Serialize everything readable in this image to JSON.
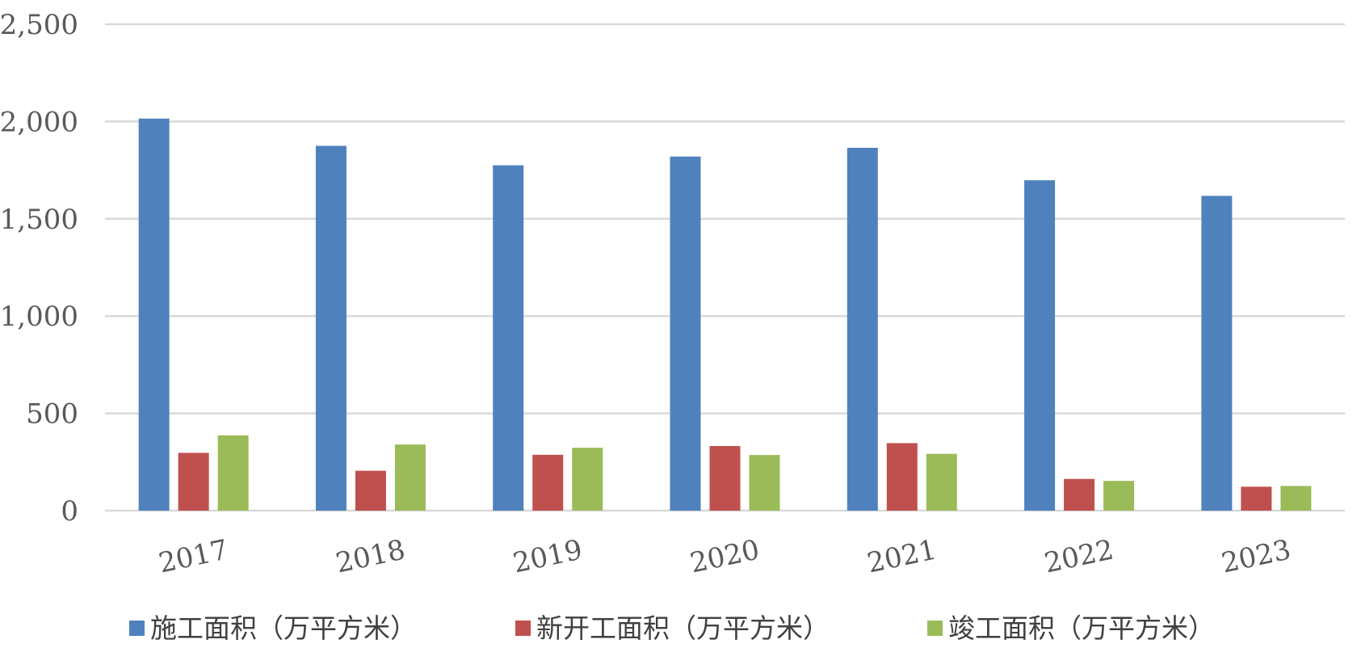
{
  "chart_data": {
    "type": "bar",
    "categories": [
      "2017",
      "2018",
      "2019",
      "2020",
      "2021",
      "2022",
      "2023"
    ],
    "series": [
      {
        "name": "施工面积（万平方米）",
        "color": "#4f81bd",
        "values": [
          2015,
          1875,
          1775,
          1820,
          1865,
          1698,
          1618
        ]
      },
      {
        "name": "新开工面积（万平方米）",
        "color": "#c0504d",
        "values": [
          297,
          205,
          287,
          332,
          347,
          163,
          123
        ]
      },
      {
        "name": "竣工面积（万平方米）",
        "color": "#9bbb59",
        "values": [
          387,
          340,
          323,
          286,
          292,
          153,
          127
        ]
      }
    ],
    "ylim": [
      0,
      2500
    ],
    "yticks": [
      0,
      500,
      1000,
      1500,
      2000,
      2500
    ],
    "ytick_labels": [
      "0",
      "500",
      "1,000",
      "1,500",
      "2,000",
      "2,500"
    ],
    "xlabel": "",
    "ylabel": "",
    "title": "",
    "grid": true,
    "legend_position": "bottom",
    "gridline_color": "#d9d9d9"
  }
}
